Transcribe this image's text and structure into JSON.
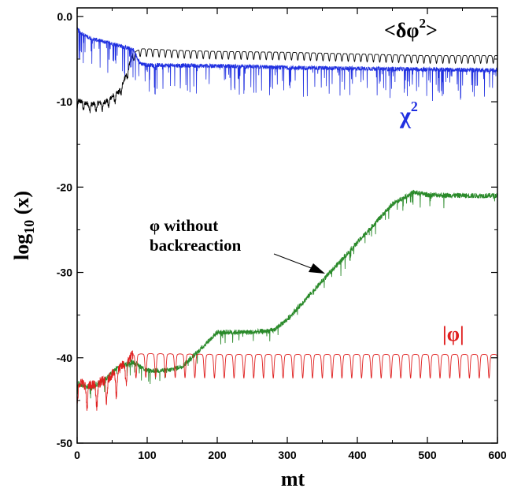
{
  "chart_data": {
    "type": "line",
    "xlabel": "mt",
    "ylabel": "log10 (x)",
    "ylabel_main": "log",
    "ylabel_sub": "10",
    "ylabel_rest": " (x)",
    "xlim": [
      0,
      600
    ],
    "ylim": [
      -50,
      1
    ],
    "x_ticks": [
      "0",
      "100",
      "200",
      "300",
      "400",
      "500",
      "600"
    ],
    "y_ticks": [
      "0.0",
      "-10",
      "-20",
      "-30",
      "-40",
      "-50"
    ],
    "grid": false,
    "legend": "none",
    "series": [
      {
        "name": "<δφ²>",
        "color": "#000000",
        "x": [
          0,
          10,
          20,
          40,
          60,
          70,
          80,
          90,
          100,
          150,
          200,
          300,
          400,
          500,
          600
        ],
        "values": [
          -10.0,
          -10.3,
          -10.5,
          -10.2,
          -9.0,
          -7.0,
          -4.5,
          -4.0,
          -4.0,
          -4.2,
          -4.3,
          -4.4,
          -4.6,
          -4.8,
          -4.8
        ]
      },
      {
        "name": "χ²",
        "color": "#1f2fe0",
        "x": [
          0,
          10,
          20,
          40,
          60,
          80,
          90,
          100,
          200,
          300,
          400,
          500,
          600
        ],
        "values": [
          -1.5,
          -2.2,
          -2.6,
          -3.0,
          -3.4,
          -3.9,
          -5.5,
          -5.7,
          -5.8,
          -6.0,
          -6.1,
          -6.2,
          -6.3
        ]
      },
      {
        "name": "φ without backreaction",
        "color": "#2a8a2a",
        "x": [
          0,
          20,
          40,
          60,
          80,
          100,
          130,
          150,
          170,
          200,
          250,
          280,
          300,
          350,
          400,
          450,
          480,
          500,
          550,
          600
        ],
        "values": [
          -43,
          -43.5,
          -42.5,
          -41,
          -40.5,
          -41.5,
          -41.5,
          -41,
          -39.5,
          -37,
          -37,
          -36.8,
          -35.5,
          -31,
          -26.5,
          -22,
          -20.6,
          -20.9,
          -21.0,
          -21.0
        ]
      },
      {
        "name": "|φ|",
        "color": "#e02020",
        "x": [
          0,
          20,
          40,
          60,
          80,
          100,
          200,
          300,
          400,
          500,
          600
        ],
        "values": [
          -43,
          -43.5,
          -42.8,
          -41.5,
          -39.8,
          -39.7,
          -39.8,
          -39.8,
          -39.8,
          -39.8,
          -39.8
        ]
      }
    ],
    "annotations": {
      "delta_phi_label": "<δφ",
      "delta_phi_sup": "2",
      "delta_phi_close": ">",
      "chi_label": "χ",
      "chi_sup": "2",
      "phi_line1": "φ without",
      "phi_line2": "backreaction",
      "abs_phi_label": "|φ|"
    }
  }
}
